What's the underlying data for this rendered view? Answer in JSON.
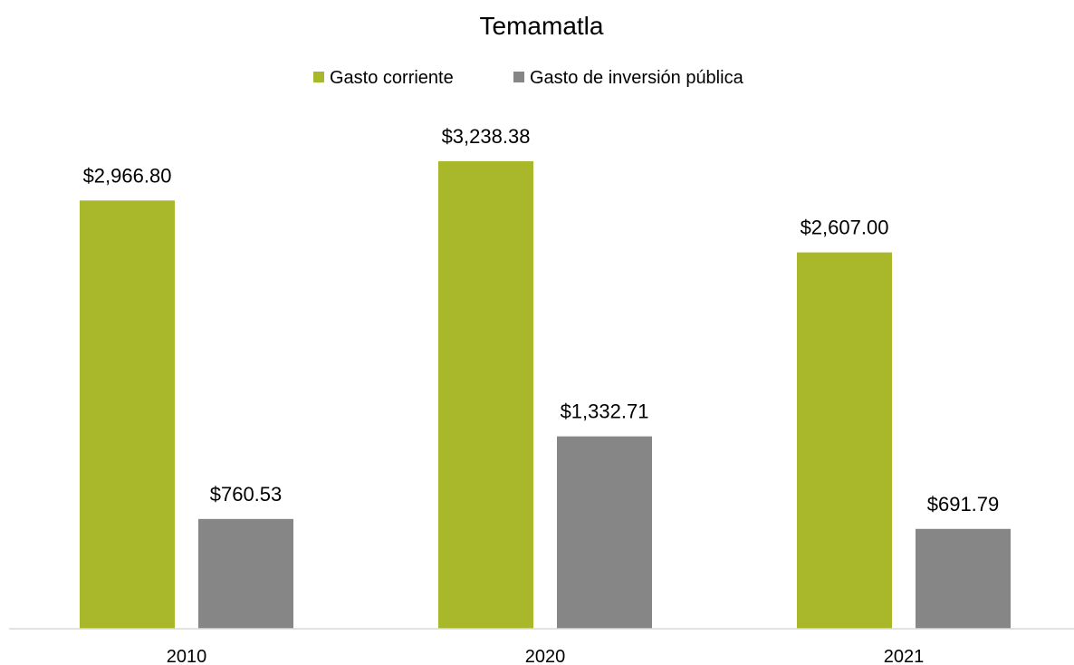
{
  "chart_data": {
    "type": "bar",
    "title": "Temamatla",
    "categories": [
      "2010",
      "2020",
      "2021"
    ],
    "series": [
      {
        "name": "Gasto corriente",
        "color": "#a8b82a",
        "values": [
          2966.8,
          3238.38,
          2607.0
        ],
        "labels": [
          "$2,966.80",
          "$3,238.38",
          "$2,607.00"
        ]
      },
      {
        "name": "Gasto de inversión pública",
        "color": "#868686",
        "values": [
          760.53,
          1332.71,
          691.79
        ],
        "labels": [
          "$760.53",
          "$1,332.71",
          "$691.79"
        ]
      }
    ],
    "xlabel": "",
    "ylabel": "",
    "ylim": [
      0,
      3500
    ],
    "grid": false,
    "legend_position": "top-center",
    "axis_color": "#d9d9d9"
  }
}
